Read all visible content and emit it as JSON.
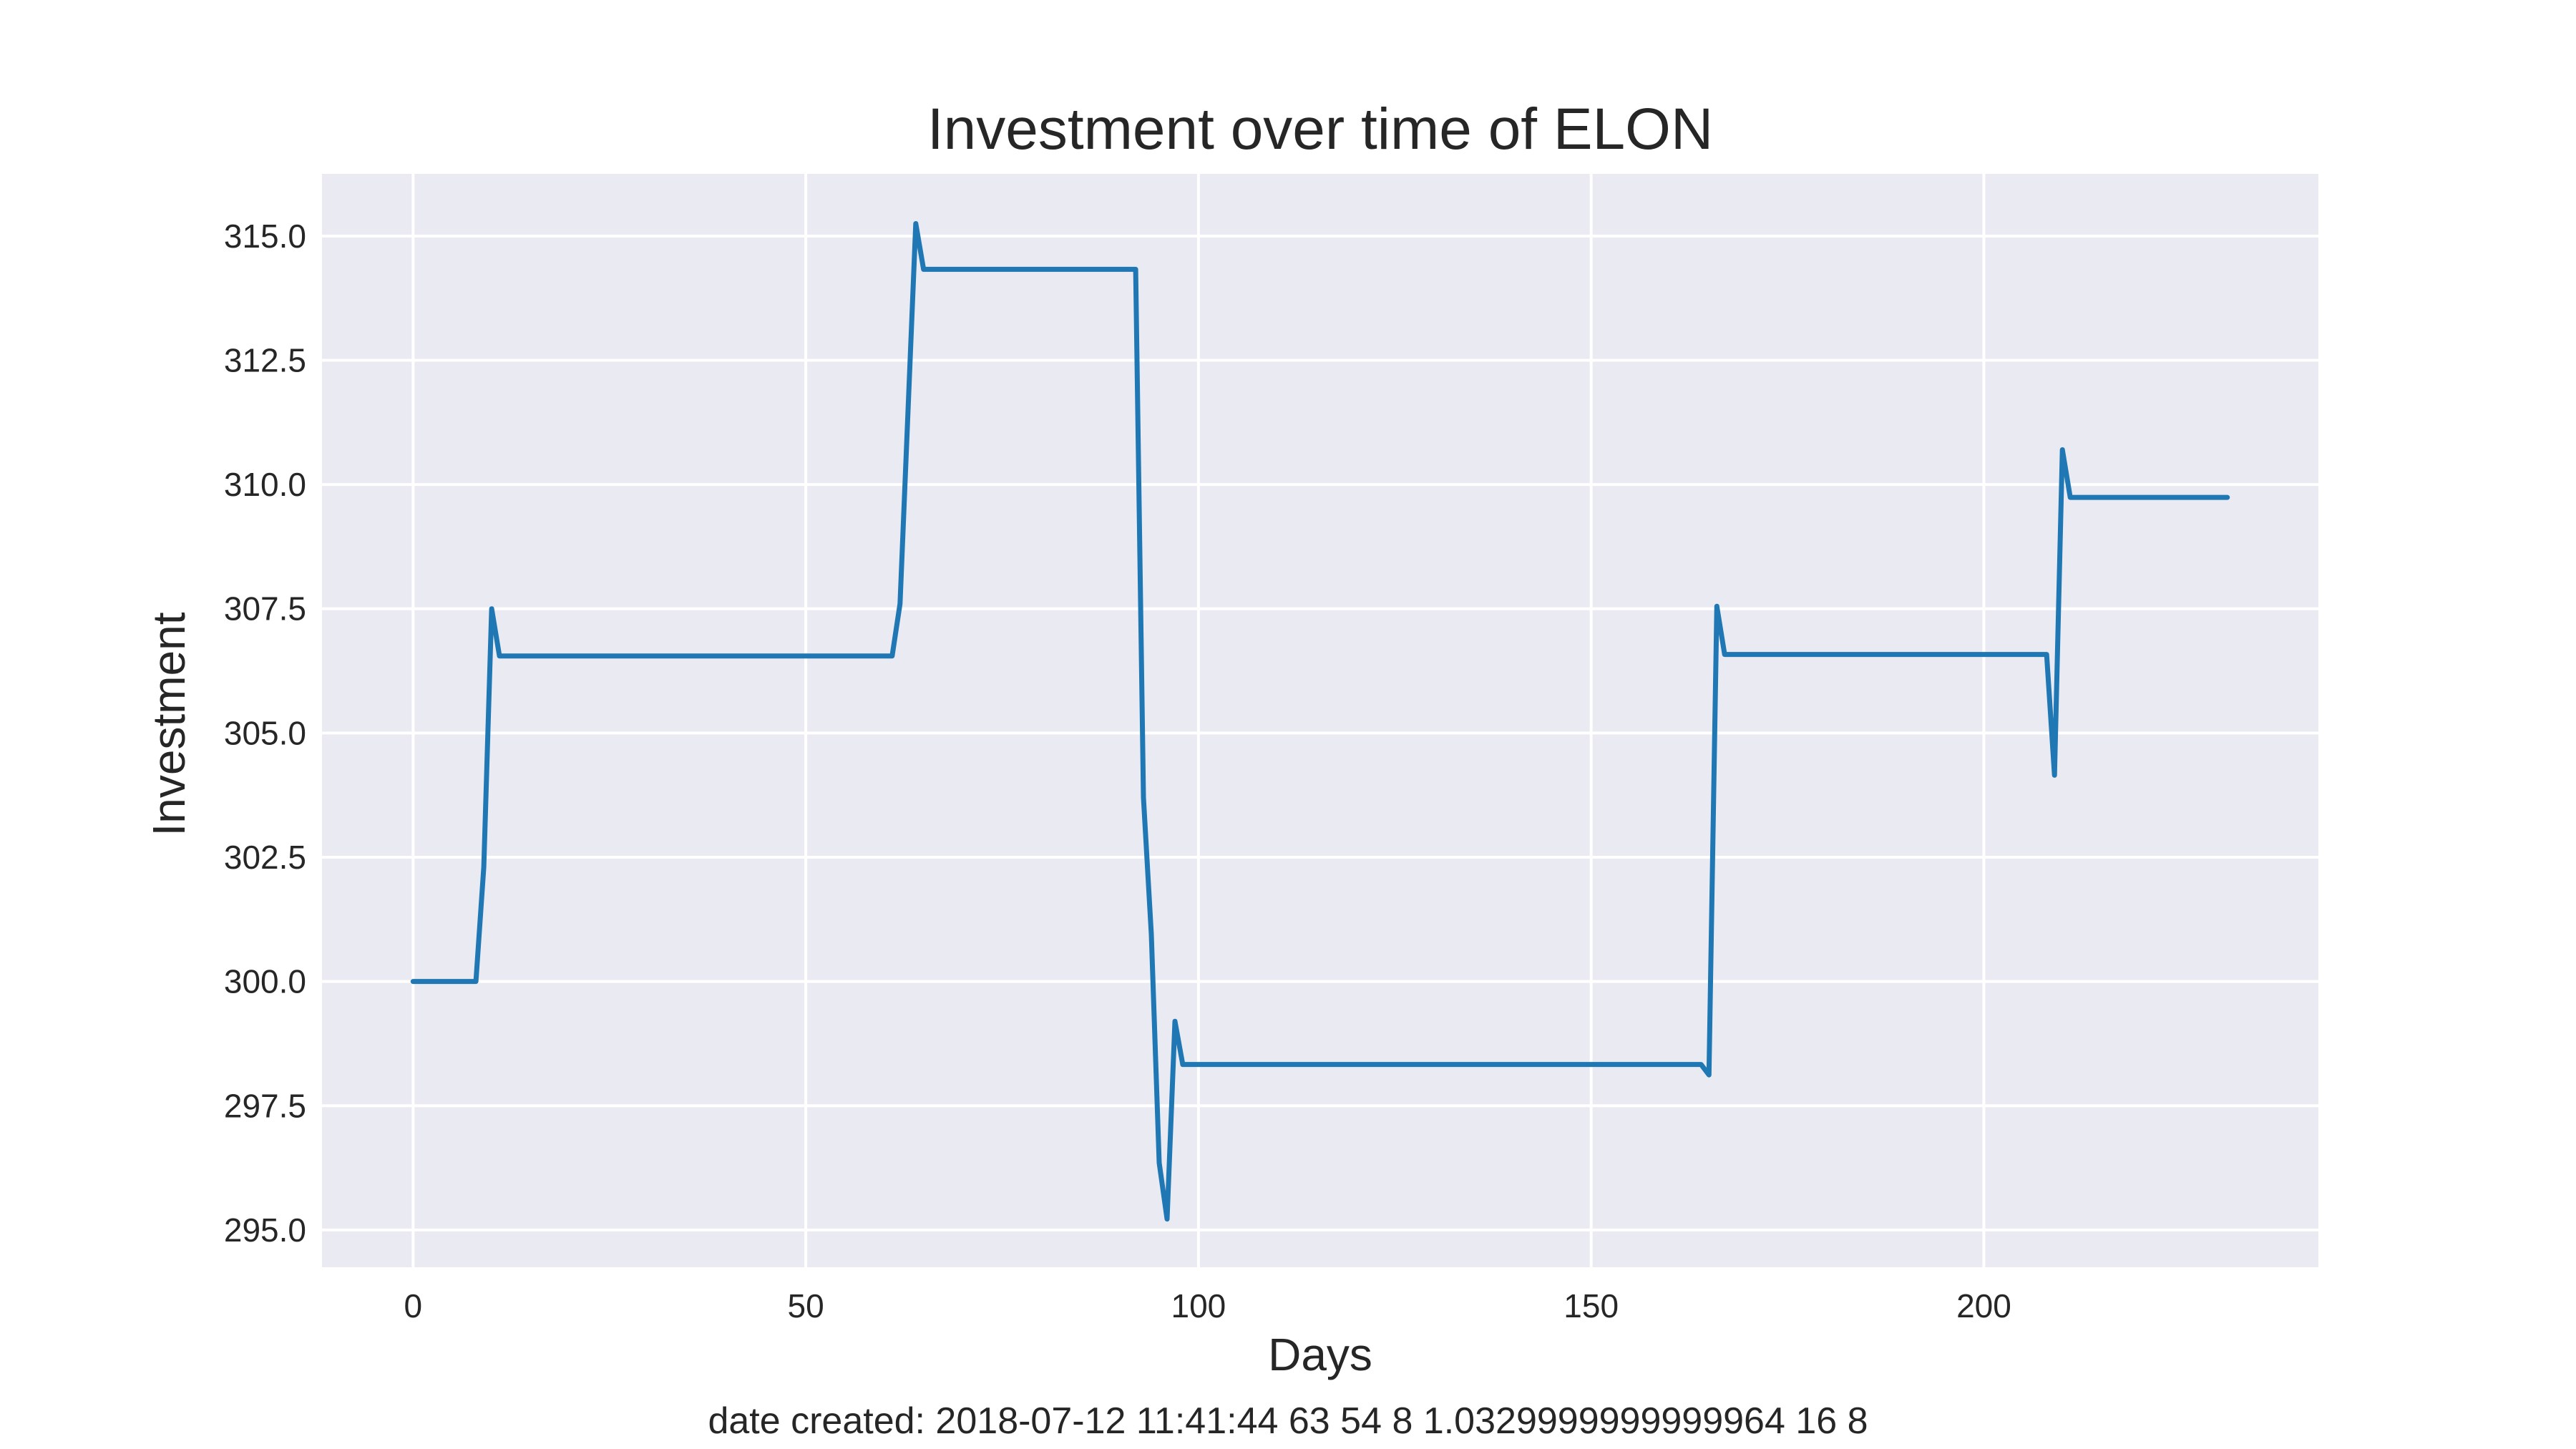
{
  "chart_data": {
    "type": "line",
    "title": "Investment over time of ELON",
    "xlabel": "Days",
    "ylabel": "Investment",
    "footer": "date created: 2018-07-12 11:41:44 63 54 8 1.0329999999999964 16 8",
    "xlim": [
      -11.6,
      242.6
    ],
    "ylim": [
      294.25,
      316.25
    ],
    "xticks": [
      0,
      50,
      100,
      150,
      200
    ],
    "xtick_labels": [
      "0",
      "50",
      "100",
      "150",
      "200"
    ],
    "yticks": [
      295.0,
      297.5,
      300.0,
      302.5,
      305.0,
      307.5,
      310.0,
      312.5,
      315.0
    ],
    "ytick_labels": [
      "295.0",
      "297.5",
      "300.0",
      "302.5",
      "305.0",
      "307.5",
      "310.0",
      "312.5",
      "315.0"
    ],
    "grid": true,
    "series": [
      {
        "color": "#1f77b4",
        "x": [
          0,
          8,
          9,
          10,
          11,
          61,
          62,
          64,
          65,
          92,
          93,
          94,
          95,
          96,
          97,
          98,
          164,
          165,
          166,
          167,
          208,
          209,
          210,
          211,
          231
        ],
        "y": [
          300.0,
          300.0,
          302.3,
          307.5,
          306.55,
          306.55,
          307.6,
          315.25,
          314.33,
          314.33,
          303.7,
          300.95,
          296.35,
          295.22,
          299.2,
          298.33,
          298.33,
          298.12,
          307.55,
          306.58,
          306.58,
          304.15,
          310.7,
          309.74,
          309.74
        ]
      }
    ]
  },
  "colors": {
    "plot_background": "#eaeaf2",
    "grid": "#ffffff",
    "line": "#1f77b4"
  }
}
